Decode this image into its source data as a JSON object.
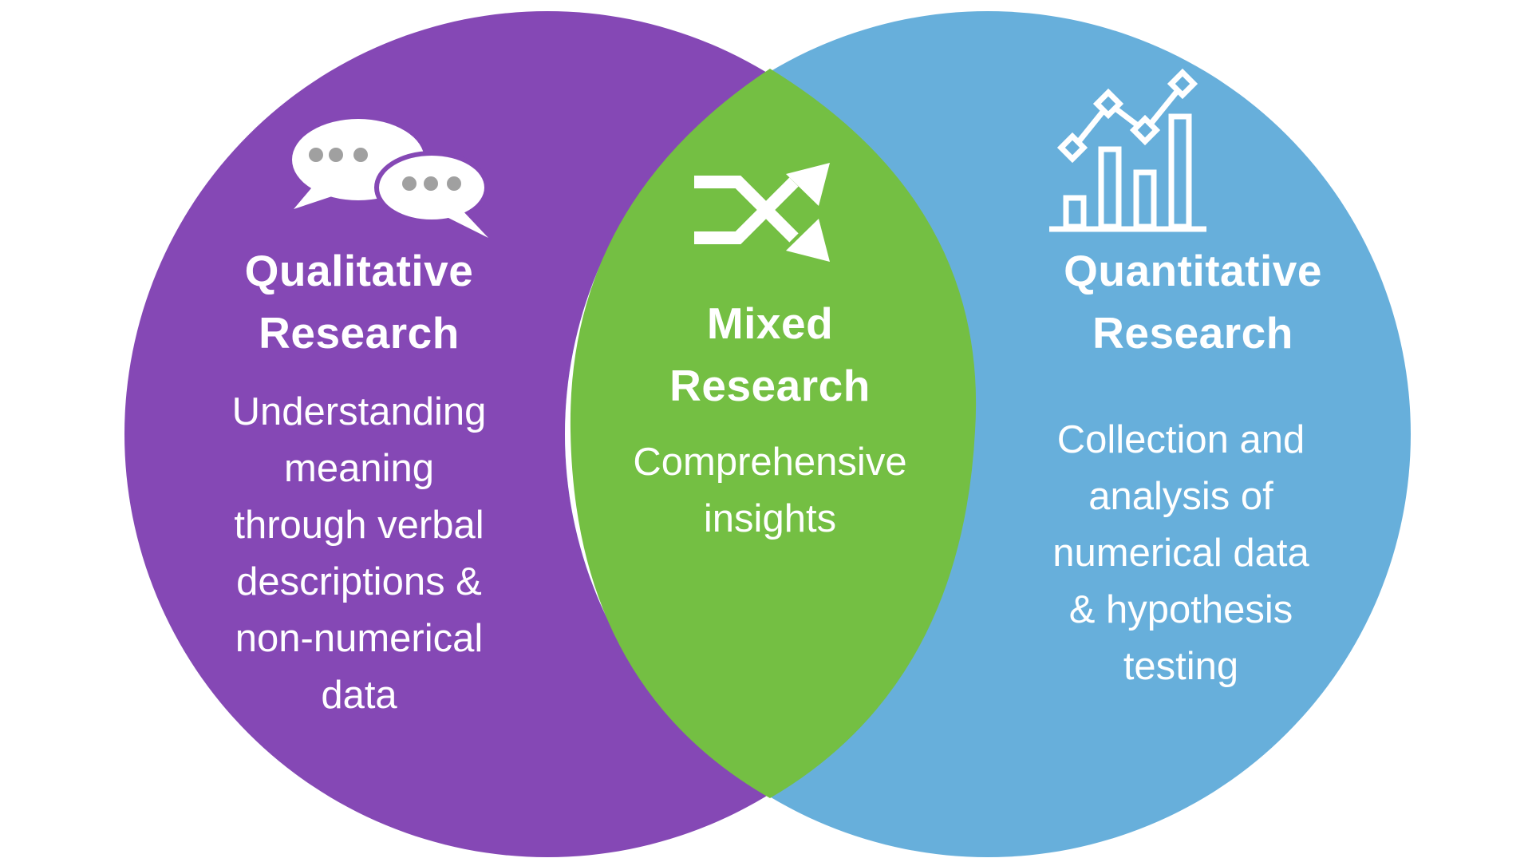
{
  "colors": {
    "qualitative": "#8548b5",
    "mixed": "#74bf43",
    "quantitative": "#67afdb",
    "icon_gray": "#a0a0a0",
    "text": "#ffffff"
  },
  "qualitative": {
    "icon": "speech-bubbles-icon",
    "title": [
      "Qualitative",
      "Research"
    ],
    "description": [
      "Understanding",
      "meaning",
      "through verbal",
      "descriptions &",
      "non-numerical",
      "data"
    ]
  },
  "mixed": {
    "icon": "shuffle-arrows-icon",
    "title": [
      "Mixed",
      "Research"
    ],
    "description": [
      "Comprehensive",
      "insights"
    ]
  },
  "quantitative": {
    "icon": "bar-line-chart-icon",
    "title": [
      "Quantitative",
      "Research"
    ],
    "description": [
      "Collection and",
      "analysis of",
      "numerical data",
      "& hypothesis",
      "testing"
    ]
  }
}
